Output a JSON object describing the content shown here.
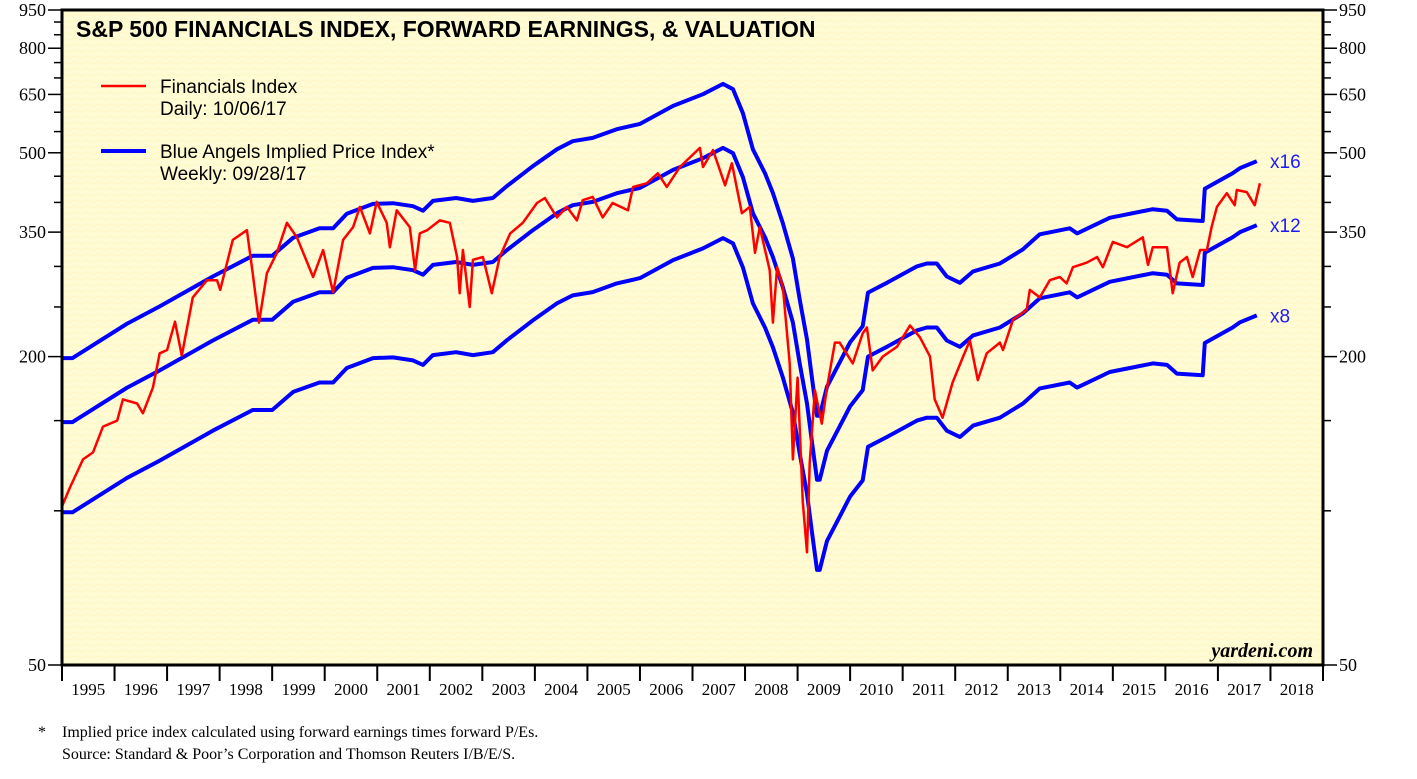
{
  "chart_data": {
    "type": "line",
    "title": "S&P 500 FINANCIALS INDEX, FORWARD EARNINGS, & VALUATION",
    "y_scale": "log",
    "ylim": [
      50,
      950
    ],
    "y_ticks": [
      50,
      200,
      350,
      500,
      650,
      800,
      950
    ],
    "xlim": [
      1995,
      2019
    ],
    "x_tick_labels": [
      "1995",
      "1996",
      "1997",
      "1998",
      "1999",
      "2000",
      "2001",
      "2002",
      "2003",
      "2004",
      "2005",
      "2006",
      "2007",
      "2008",
      "2009",
      "2010",
      "2011",
      "2012",
      "2013",
      "2014",
      "2015",
      "2016",
      "2017",
      "2018"
    ],
    "grid": false,
    "legend_placement": "top-left",
    "legend": [
      {
        "label": "Financials Index",
        "sublabel": "Daily: 10/06/17",
        "color": "#ff0000"
      },
      {
        "label": "Blue Angels Implied Price Index*",
        "sublabel": "Weekly: 09/28/17",
        "color": "#0000ff"
      }
    ],
    "series": [
      {
        "name": "Financials Index",
        "color": "#ff0000",
        "points": [
          [
            1995.0,
            102
          ],
          [
            1995.15,
            111
          ],
          [
            1995.4,
            126
          ],
          [
            1995.59,
            130
          ],
          [
            1995.78,
            146
          ],
          [
            1996.05,
            150
          ],
          [
            1996.16,
            165
          ],
          [
            1996.43,
            162
          ],
          [
            1996.54,
            155
          ],
          [
            1996.73,
            174
          ],
          [
            1996.86,
            203
          ],
          [
            1997.0,
            206
          ],
          [
            1997.15,
            234
          ],
          [
            1997.28,
            201
          ],
          [
            1997.49,
            261
          ],
          [
            1997.76,
            282
          ],
          [
            1997.95,
            282
          ],
          [
            1998.01,
            270
          ],
          [
            1998.25,
            338
          ],
          [
            1998.52,
            353
          ],
          [
            1998.63,
            291
          ],
          [
            1998.75,
            233
          ],
          [
            1998.9,
            291
          ],
          [
            1999.09,
            319
          ],
          [
            1999.28,
            365
          ],
          [
            1999.47,
            342
          ],
          [
            1999.78,
            286
          ],
          [
            1999.97,
            323
          ],
          [
            2000.16,
            267
          ],
          [
            2000.35,
            338
          ],
          [
            2000.54,
            358
          ],
          [
            2000.67,
            392
          ],
          [
            2000.86,
            348
          ],
          [
            2000.99,
            401
          ],
          [
            2001.18,
            365
          ],
          [
            2001.24,
            327
          ],
          [
            2001.37,
            386
          ],
          [
            2001.62,
            358
          ],
          [
            2001.72,
            295
          ],
          [
            2001.81,
            348
          ],
          [
            2001.95,
            353
          ],
          [
            2002.19,
            369
          ],
          [
            2002.38,
            365
          ],
          [
            2002.52,
            313
          ],
          [
            2002.57,
            266
          ],
          [
            2002.63,
            323
          ],
          [
            2002.76,
            250
          ],
          [
            2002.82,
            309
          ],
          [
            2003.01,
            313
          ],
          [
            2003.18,
            266
          ],
          [
            2003.33,
            313
          ],
          [
            2003.53,
            348
          ],
          [
            2003.77,
            365
          ],
          [
            2004.04,
            399
          ],
          [
            2004.19,
            408
          ],
          [
            2004.42,
            374
          ],
          [
            2004.61,
            392
          ],
          [
            2004.8,
            369
          ],
          [
            2004.91,
            404
          ],
          [
            2005.1,
            410
          ],
          [
            2005.29,
            374
          ],
          [
            2005.48,
            399
          ],
          [
            2005.77,
            386
          ],
          [
            2005.87,
            429
          ],
          [
            2006.13,
            436
          ],
          [
            2006.34,
            456
          ],
          [
            2006.51,
            429
          ],
          [
            2006.76,
            469
          ],
          [
            2007.14,
            511
          ],
          [
            2007.2,
            469
          ],
          [
            2007.39,
            506
          ],
          [
            2007.62,
            432
          ],
          [
            2007.75,
            477
          ],
          [
            2007.94,
            381
          ],
          [
            2008.09,
            392
          ],
          [
            2008.19,
            319
          ],
          [
            2008.28,
            358
          ],
          [
            2008.47,
            295
          ],
          [
            2008.53,
            233
          ],
          [
            2008.61,
            299
          ],
          [
            2008.72,
            273
          ],
          [
            2008.85,
            194
          ],
          [
            2008.91,
            126
          ],
          [
            2009.0,
            182
          ],
          [
            2009.1,
            104
          ],
          [
            2009.18,
            83
          ],
          [
            2009.23,
            124
          ],
          [
            2009.33,
            172
          ],
          [
            2009.46,
            148
          ],
          [
            2009.56,
            174
          ],
          [
            2009.71,
            213
          ],
          [
            2009.8,
            213
          ],
          [
            2010.05,
            194
          ],
          [
            2010.24,
            222
          ],
          [
            2010.32,
            228
          ],
          [
            2010.43,
            188
          ],
          [
            2010.62,
            200
          ],
          [
            2010.89,
            209
          ],
          [
            2011.14,
            230
          ],
          [
            2011.33,
            218
          ],
          [
            2011.52,
            200
          ],
          [
            2011.61,
            165
          ],
          [
            2011.76,
            152
          ],
          [
            2011.95,
            178
          ],
          [
            2012.15,
            200
          ],
          [
            2012.28,
            215
          ],
          [
            2012.43,
            180
          ],
          [
            2012.6,
            203
          ],
          [
            2012.85,
            213
          ],
          [
            2012.91,
            206
          ],
          [
            2013.1,
            236
          ],
          [
            2013.36,
            247
          ],
          [
            2013.42,
            270
          ],
          [
            2013.61,
            261
          ],
          [
            2013.8,
            282
          ],
          [
            2013.99,
            286
          ],
          [
            2014.12,
            278
          ],
          [
            2014.24,
            299
          ],
          [
            2014.5,
            305
          ],
          [
            2014.7,
            313
          ],
          [
            2014.81,
            299
          ],
          [
            2015.0,
            335
          ],
          [
            2015.27,
            327
          ],
          [
            2015.57,
            342
          ],
          [
            2015.67,
            302
          ],
          [
            2015.76,
            327
          ],
          [
            2016.03,
            327
          ],
          [
            2016.14,
            266
          ],
          [
            2016.27,
            305
          ],
          [
            2016.41,
            313
          ],
          [
            2016.52,
            286
          ],
          [
            2016.66,
            323
          ],
          [
            2016.79,
            323
          ],
          [
            2016.88,
            358
          ],
          [
            2016.98,
            392
          ],
          [
            2017.17,
            417
          ],
          [
            2017.32,
            395
          ],
          [
            2017.36,
            423
          ],
          [
            2017.55,
            419
          ],
          [
            2017.7,
            395
          ],
          [
            2017.8,
            436
          ]
        ]
      }
    ],
    "implied_x12": {
      "color": "#0000ff",
      "points": [
        [
          1995.0,
          149
        ],
        [
          1995.2,
          149
        ],
        [
          1996.24,
          174
        ],
        [
          1996.86,
          188
        ],
        [
          1997.87,
          215
        ],
        [
          1998.63,
          236
        ],
        [
          1999.0,
          236
        ],
        [
          1999.4,
          256
        ],
        [
          1999.9,
          267
        ],
        [
          2000.16,
          267
        ],
        [
          2000.42,
          285
        ],
        [
          2000.92,
          298
        ],
        [
          2001.3,
          299
        ],
        [
          2001.68,
          295
        ],
        [
          2001.87,
          289
        ],
        [
          2002.06,
          302
        ],
        [
          2002.5,
          306
        ],
        [
          2002.82,
          302
        ],
        [
          2003.2,
          306
        ],
        [
          2003.47,
          323
        ],
        [
          2003.96,
          353
        ],
        [
          2004.42,
          381
        ],
        [
          2004.72,
          395
        ],
        [
          2005.1,
          401
        ],
        [
          2005.56,
          417
        ],
        [
          2006.0,
          427
        ],
        [
          2006.63,
          463
        ],
        [
          2007.2,
          488
        ],
        [
          2007.58,
          511
        ],
        [
          2007.77,
          499
        ],
        [
          2007.96,
          448
        ],
        [
          2008.15,
          381
        ],
        [
          2008.38,
          342
        ],
        [
          2008.53,
          313
        ],
        [
          2008.72,
          273
        ],
        [
          2008.91,
          233
        ],
        [
          2009.04,
          194
        ],
        [
          2009.18,
          162
        ],
        [
          2009.27,
          137
        ],
        [
          2009.37,
          115
        ],
        [
          2009.42,
          115
        ],
        [
          2009.56,
          131
        ],
        [
          2009.8,
          146
        ],
        [
          2010.0,
          160
        ],
        [
          2010.24,
          172
        ],
        [
          2010.34,
          200
        ],
        [
          2010.7,
          209
        ],
        [
          2011.27,
          225
        ],
        [
          2011.46,
          228
        ],
        [
          2011.65,
          228
        ],
        [
          2011.84,
          215
        ],
        [
          2012.09,
          209
        ],
        [
          2012.34,
          220
        ],
        [
          2012.85,
          228
        ],
        [
          2013.29,
          243
        ],
        [
          2013.61,
          260
        ],
        [
          2014.18,
          267
        ],
        [
          2014.32,
          261
        ],
        [
          2014.94,
          280
        ],
        [
          2015.76,
          291
        ],
        [
          2016.03,
          289
        ],
        [
          2016.22,
          278
        ],
        [
          2016.71,
          276
        ],
        [
          2016.75,
          319
        ],
        [
          2017.28,
          342
        ],
        [
          2017.42,
          350
        ],
        [
          2017.74,
          361
        ]
      ]
    },
    "implied_multiples": [
      {
        "label": "x16",
        "multiple": 16
      },
      {
        "label": "x12",
        "multiple": 12
      },
      {
        "label": "x8",
        "multiple": 8
      }
    ],
    "watermark": "yardeni.com",
    "footnote": {
      "marker": "*",
      "line1": "Implied price index calculated using forward earnings times forward P/Es.",
      "line2": "Source: Standard & Poor’s Corporation and Thomson Reuters I/B/E/S."
    }
  }
}
